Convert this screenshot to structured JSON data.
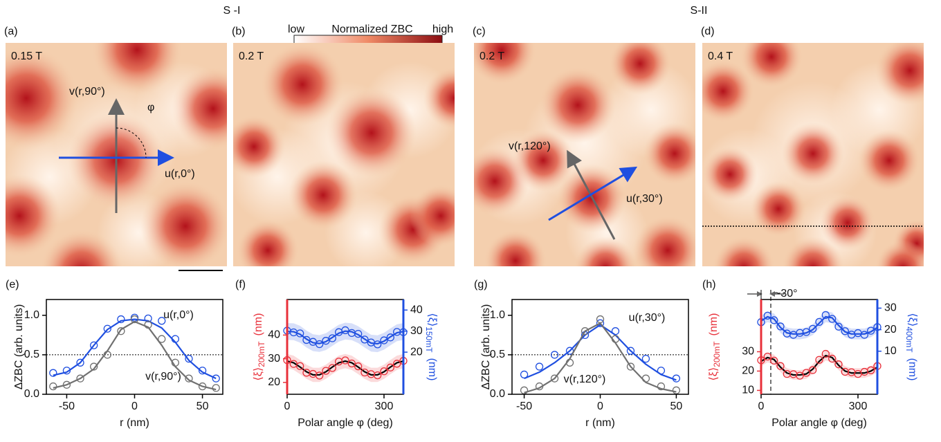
{
  "groups": [
    {
      "label": "S -I"
    },
    {
      "label": "S-II"
    }
  ],
  "colorbar": {
    "low": "low",
    "title": "Normalized ZBC",
    "high": "high"
  },
  "maps": [
    {
      "letter": "(a)",
      "field": "0.15 T",
      "arrows": [
        {
          "label": "v(r,90°)"
        },
        {
          "label": "u(r,0°)"
        }
      ],
      "angle": "φ"
    },
    {
      "letter": "(b)",
      "field": "0.2 T"
    },
    {
      "letter": "(c)",
      "field": "0.2 T",
      "arrows": [
        {
          "label": "v(r,120°)"
        },
        {
          "label": "u(r,30°)"
        }
      ]
    },
    {
      "letter": "(d)",
      "field": "0.4 T"
    }
  ],
  "chart_data": [
    {
      "type": "scatter",
      "letter": "(e)",
      "xlabel": "r (nm)",
      "ylabel": "ΔZBC (arb. units)",
      "x": [
        -60,
        -50,
        -40,
        -30,
        -20,
        -10,
        0,
        10,
        20,
        30,
        40,
        50,
        60
      ],
      "xlim": [
        -65,
        65
      ],
      "xticks": [
        -50,
        0,
        50
      ],
      "ylim": [
        0,
        1.2
      ],
      "yticks": [
        {
          "value": 0,
          "label": "0.0"
        },
        0.5,
        {
          "value": 1,
          "label": "1.0"
        }
      ],
      "hline": 0.5,
      "series": [
        {
          "name": "u(r,0°)",
          "color": "#1f4fe0",
          "values": [
            0.27,
            0.3,
            0.4,
            0.62,
            0.83,
            0.95,
            0.97,
            0.96,
            0.93,
            0.7,
            0.45,
            0.3,
            0.2
          ],
          "fit": [
            0.24,
            0.28,
            0.4,
            0.62,
            0.82,
            0.93,
            0.95,
            0.93,
            0.84,
            0.66,
            0.43,
            0.28,
            0.2
          ]
        },
        {
          "name": "v(r,90°)",
          "color": "#707070",
          "values": [
            0.1,
            0.12,
            0.2,
            0.35,
            0.5,
            0.8,
            0.95,
            0.88,
            0.7,
            0.4,
            0.2,
            0.1,
            0.08
          ],
          "fit": [
            0.08,
            0.12,
            0.2,
            0.32,
            0.55,
            0.82,
            0.92,
            0.85,
            0.62,
            0.35,
            0.18,
            0.1,
            0.06
          ]
        }
      ]
    },
    {
      "type": "scatter",
      "letter": "(f)",
      "xlabel": "Polar angle φ (deg)",
      "ylabel": "⟨ξ⟩",
      "ylabel_sub": "200mT",
      "ylabel_unit": "(nm)",
      "ycolor": "#e8303a",
      "y2label": "⟨ξ⟩",
      "y2label_sub": "150mT",
      "y2label_unit": "(nm)",
      "y2color": "#1f4fe0",
      "x": [
        0,
        20,
        40,
        60,
        80,
        100,
        120,
        140,
        160,
        180,
        200,
        220,
        240,
        260,
        280,
        300,
        320,
        340,
        360
      ],
      "xlim": [
        0,
        360
      ],
      "xticks": [
        0,
        300
      ],
      "ylim": [
        15,
        55
      ],
      "yticks": [
        20,
        30,
        40
      ],
      "y2lim": [
        0,
        45
      ],
      "y2ticks": [
        20,
        30,
        40
      ],
      "series": [
        {
          "color": "#1f4fe0",
          "axis": "y2",
          "spread": 4,
          "values": [
            30.2,
            29.4,
            28.9,
            25.8,
            24.9,
            23.8,
            25.4,
            26.6,
            29.5,
            30.4,
            29.1,
            28.7,
            26.0,
            24.6,
            23.7,
            25.6,
            27.0,
            29.6,
            29.5
          ],
          "fit": [
            29.8,
            29.7,
            28.5,
            26.2,
            24.5,
            24.1,
            25.0,
            27.0,
            29.0,
            30.0,
            29.7,
            28.3,
            26.2,
            24.3,
            24.0,
            25.2,
            27.3,
            29.2,
            29.8
          ]
        },
        {
          "color": "#e8303a",
          "spread": 3,
          "values": [
            29.4,
            27.8,
            26.9,
            24.1,
            23.6,
            22.9,
            24.9,
            26.1,
            28.8,
            29.3,
            28.0,
            26.8,
            24.2,
            23.5,
            23.0,
            24.7,
            26.3,
            27.9,
            29.1
          ],
          "fit": [
            29,
            28.3,
            26.5,
            24.5,
            23.2,
            23.2,
            24.5,
            26.5,
            28.3,
            29,
            28.3,
            26.5,
            24.5,
            23.2,
            23.2,
            24.5,
            26.5,
            28.3,
            29
          ]
        }
      ]
    },
    {
      "type": "scatter",
      "letter": "(g)",
      "xlabel": "r (nm)",
      "ylabel": "ΔZBC (arb. units)",
      "x": [
        -50,
        -40,
        -30,
        -20,
        -10,
        0,
        10,
        20,
        30,
        40,
        50
      ],
      "xlim": [
        -58,
        58
      ],
      "xticks": [
        -50,
        0,
        50
      ],
      "ylim": [
        0,
        1.2
      ],
      "yticks": [
        {
          "value": 0,
          "label": "0.0"
        },
        0.5,
        {
          "value": 1,
          "label": "1.0"
        }
      ],
      "hline": 0.5,
      "series": [
        {
          "name": "u(r,30°)",
          "color": "#1f4fe0",
          "values": [
            0.25,
            0.35,
            0.5,
            0.55,
            0.75,
            0.9,
            0.8,
            0.55,
            0.45,
            0.3,
            0.2
          ],
          "fit": [
            0.2,
            0.28,
            0.4,
            0.55,
            0.75,
            0.88,
            0.75,
            0.55,
            0.38,
            0.25,
            0.18
          ]
        },
        {
          "name": "v(r,120°)",
          "color": "#707070",
          "values": [
            0.05,
            0.1,
            0.2,
            0.4,
            0.8,
            0.95,
            0.7,
            0.35,
            0.2,
            0.1,
            0.05
          ],
          "fit": [
            0.02,
            0.08,
            0.2,
            0.45,
            0.8,
            0.9,
            0.65,
            0.35,
            0.15,
            0.07,
            0.03
          ]
        }
      ]
    },
    {
      "type": "scatter",
      "letter": "(h)",
      "xlabel": "Polar angle φ (deg)",
      "ylabel": "⟨ξ⟩",
      "ylabel_sub": "200mT",
      "ylabel_unit": "(nm)",
      "ycolor": "#e8303a",
      "y2label": "⟨ξ⟩",
      "y2label_sub": "400mT",
      "y2label_unit": "(nm)",
      "y2color": "#1f4fe0",
      "x": [
        0,
        20,
        40,
        60,
        80,
        100,
        120,
        140,
        160,
        180,
        200,
        220,
        240,
        260,
        280,
        300,
        320,
        340,
        360
      ],
      "xlim": [
        0,
        360
      ],
      "xticks": [
        0,
        300
      ],
      "ylim": [
        8,
        57
      ],
      "yticks": [
        10,
        20,
        30
      ],
      "y2lim": [
        -10,
        34
      ],
      "y2ticks": [
        10,
        20,
        30
      ],
      "vline": 30,
      "annotation": "~30°",
      "series": [
        {
          "color": "#1f4fe0",
          "axis": "y2",
          "spread": 2.5,
          "values": [
            23.5,
            26.5,
            24.4,
            21.5,
            18.2,
            17.6,
            18.5,
            18.9,
            20.4,
            23.6,
            26.8,
            25.0,
            21.4,
            19.3,
            17.7,
            18.4,
            17.6,
            19.5,
            21.2
          ],
          "fit": [
            24,
            26,
            25,
            21,
            18.5,
            18,
            18,
            18.5,
            20,
            23,
            26,
            25.5,
            22,
            19,
            18,
            18,
            18,
            19,
            21
          ]
        },
        {
          "color": "#e8303a",
          "spread": 2.5,
          "values": [
            25.6,
            27.5,
            25.4,
            22.6,
            18.5,
            18.4,
            17.6,
            19.1,
            20.5,
            25.8,
            28.9,
            26.4,
            23.5,
            19.6,
            19.4,
            18.5,
            19.6,
            20.4,
            22.6
          ],
          "fit": [
            25,
            27,
            26,
            22,
            19,
            18,
            18,
            18.5,
            21,
            25,
            28,
            27,
            23,
            20,
            19,
            19,
            19,
            20,
            22
          ]
        }
      ]
    }
  ]
}
